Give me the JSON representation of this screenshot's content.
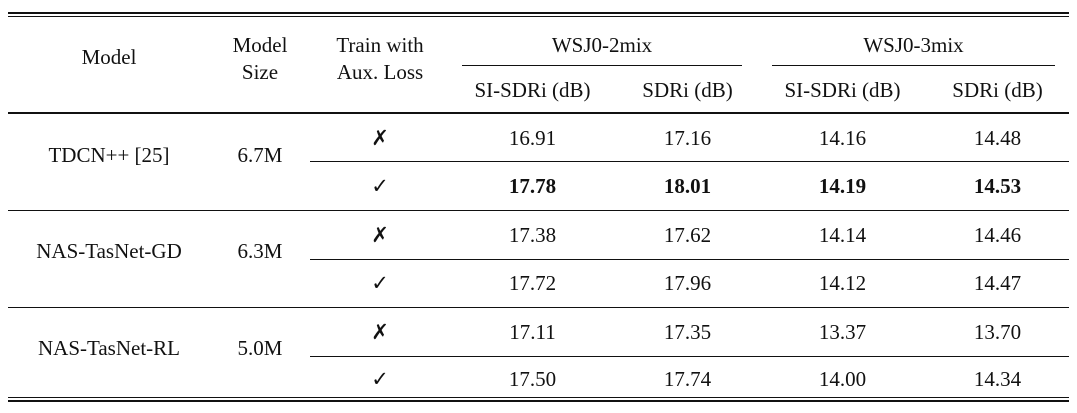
{
  "table": {
    "header": {
      "model": "Model",
      "model_size": [
        "Model",
        "Size"
      ],
      "aux_loss": [
        "Train with",
        "Aux. Loss"
      ],
      "groups": [
        "WSJ0-2mix",
        "WSJ0-3mix"
      ],
      "subcols": [
        "SI-SDRi (dB)",
        "SDRi (dB)",
        "SI-SDRi (dB)",
        "SDRi (dB)"
      ]
    },
    "groups": [
      {
        "model": "TDCN++ [25]",
        "size": "6.7M",
        "rows": [
          {
            "aux": "✗",
            "bold": false,
            "values": [
              "16.91",
              "17.16",
              "14.16",
              "14.48"
            ]
          },
          {
            "aux": "✓",
            "bold": true,
            "values": [
              "17.78",
              "18.01",
              "14.19",
              "14.53"
            ]
          }
        ]
      },
      {
        "model": "NAS-TasNet-GD",
        "size": "6.3M",
        "rows": [
          {
            "aux": "✗",
            "bold": false,
            "values": [
              "17.38",
              "17.62",
              "14.14",
              "14.46"
            ]
          },
          {
            "aux": "✓",
            "bold": false,
            "values": [
              "17.72",
              "17.96",
              "14.12",
              "14.47"
            ]
          }
        ]
      },
      {
        "model": "NAS-TasNet-RL",
        "size": "5.0M",
        "rows": [
          {
            "aux": "✗",
            "bold": false,
            "values": [
              "17.11",
              "17.35",
              "13.37",
              "13.70"
            ]
          },
          {
            "aux": "✓",
            "bold": false,
            "values": [
              "17.50",
              "17.74",
              "14.00",
              "14.34"
            ]
          }
        ]
      }
    ]
  }
}
